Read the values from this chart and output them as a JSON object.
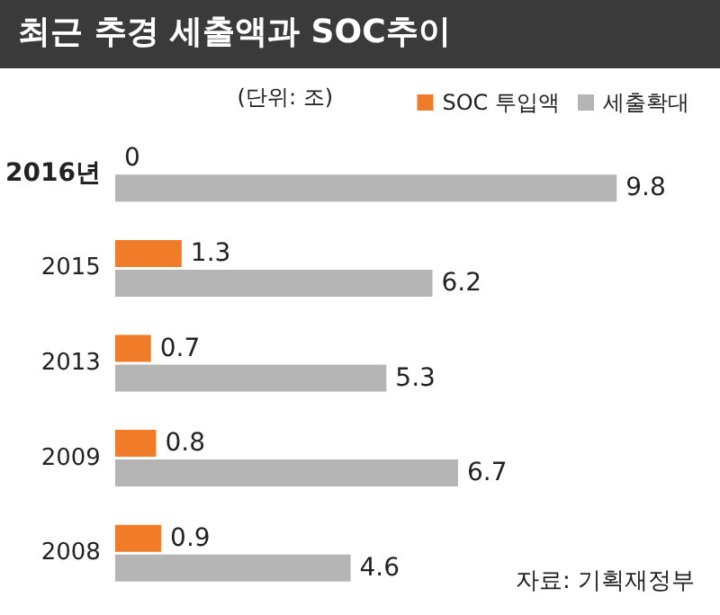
{
  "chart_data": {
    "type": "bar",
    "orientation": "horizontal",
    "title": "최근 추경 세출액과 SOC추이",
    "categories": [
      "2016년",
      "2015",
      "2013",
      "2009",
      "2008"
    ],
    "series": [
      {
        "name": "SOC 투입액",
        "color": "#f07c2a",
        "values": [
          0,
          1.3,
          0.7,
          0.8,
          0.9
        ]
      },
      {
        "name": "세출확대",
        "color": "#b5b5b5",
        "values": [
          9.8,
          6.2,
          5.3,
          6.7,
          4.6
        ]
      }
    ],
    "data_labels": true,
    "legend": "top right",
    "annotations": [
      "(단위: 조)",
      "자료: 기획재정부"
    ]
  }
}
